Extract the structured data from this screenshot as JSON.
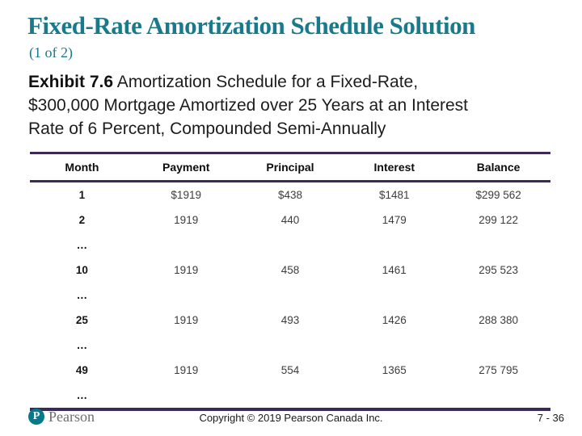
{
  "slide": {
    "title": "Fixed-Rate Amortization Schedule Solution",
    "subtitle": "(1 of 2)",
    "caption_lines": [
      {
        "bold": "Exhibit 7.6",
        "rest": " Amortization Schedule for a Fixed-Rate,"
      },
      {
        "rest": "$300,000 Mortgage Amortized over 25 Years at an Interest"
      },
      {
        "rest": "Rate of 6 Percent, Compounded Semi-Annually"
      }
    ]
  },
  "table": {
    "headers": [
      "Month",
      "Payment",
      "Principal",
      "Interest",
      "Balance"
    ],
    "rows": [
      {
        "month": "1",
        "payment": "$1919",
        "principal": "$438",
        "interest": "$1481",
        "balance": "$299 562"
      },
      {
        "month": "2",
        "payment": "1919",
        "principal": "440",
        "interest": "1479",
        "balance": "299 122"
      },
      {
        "month": "…"
      },
      {
        "month": "10",
        "payment": "1919",
        "principal": "458",
        "interest": "1461",
        "balance": "295 523"
      },
      {
        "month": "…"
      },
      {
        "month": "25",
        "payment": "1919",
        "principal": "493",
        "interest": "1426",
        "balance": "288 380"
      },
      {
        "month": "…"
      },
      {
        "month": "49",
        "payment": "1919",
        "principal": "554",
        "interest": "1365",
        "balance": "275 795"
      },
      {
        "month": "…"
      }
    ]
  },
  "footer": {
    "logo_icon": "P",
    "logo_text": "Pearson",
    "copyright": "Copyright © 2019 Pearson Canada Inc.",
    "page_number": "7 - 36"
  },
  "colors": {
    "title_teal": "#1A7A8C",
    "table_border_purple": "#3B2A59",
    "logo_teal": "#067A8B"
  }
}
